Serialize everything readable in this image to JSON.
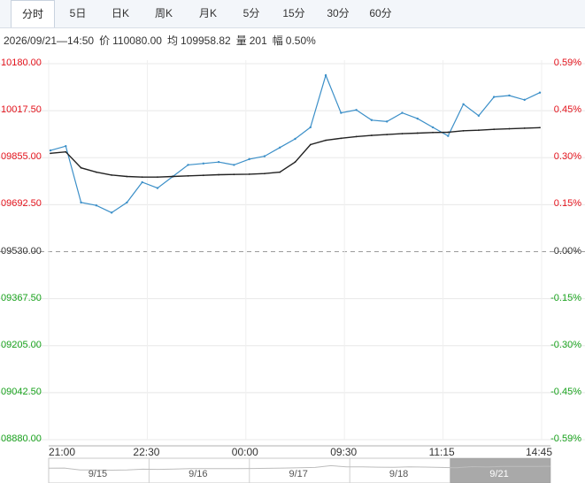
{
  "tabs": [
    {
      "label": "分时",
      "active": true
    },
    {
      "label": "5日"
    },
    {
      "label": "日K"
    },
    {
      "label": "周K"
    },
    {
      "label": "月K"
    },
    {
      "label": "5分"
    },
    {
      "label": "15分"
    },
    {
      "label": "30分"
    },
    {
      "label": "60分"
    }
  ],
  "info": {
    "datetime": "2026/09/21—14:50",
    "price_label": "价",
    "price": "110080.00",
    "avg_label": "均",
    "avg": "109958.82",
    "vol_label": "量",
    "vol": "201",
    "change_label": "幅",
    "change": "0.50%"
  },
  "y_left": [
    "10180.00",
    "10017.50",
    "09855.00",
    "09692.50",
    "09530.00",
    "09367.50",
    "09205.00",
    "09042.50",
    "08880.00"
  ],
  "y_right": [
    "0.59%",
    "0.45%",
    "0.30%",
    "0.15%",
    "0.00%",
    "-0.15%",
    "-0.30%",
    "-0.45%",
    "-0.59%"
  ],
  "x_labels": [
    "21:00",
    "22:30",
    "00:00",
    "09:30",
    "11:15",
    "14:45"
  ],
  "navigator_labels": [
    "9/15",
    "9/16",
    "9/17",
    "9/18",
    "9/21"
  ],
  "colors": {
    "price_line": "#3b8fc8",
    "avg_line": "#222222",
    "up": "#e4131c",
    "down": "#19a21d"
  },
  "chart_data": {
    "type": "line",
    "ylim": [
      8880.0,
      10180.0
    ],
    "base": 9530.0,
    "x": [
      "21:00",
      "21:15",
      "21:30",
      "21:45",
      "22:00",
      "22:15",
      "22:30",
      "22:45",
      "23:00",
      "23:15",
      "23:30",
      "23:45",
      "00:00",
      "00:15",
      "00:30",
      "00:45",
      "09:00",
      "09:15",
      "09:30",
      "09:45",
      "10:00",
      "10:15",
      "10:30",
      "10:45",
      "11:00",
      "11:15",
      "11:30",
      "13:30",
      "13:45",
      "14:00",
      "14:15",
      "14:30",
      "14:45"
    ],
    "series": [
      {
        "name": "价",
        "values": [
          9880,
          9895,
          9700,
          9690,
          9665,
          9700,
          9770,
          9750,
          9790,
          9830,
          9835,
          9840,
          9830,
          9850,
          9860,
          9890,
          9920,
          9960,
          10140,
          10010,
          10020,
          9985,
          9980,
          10010,
          9990,
          9960,
          9930,
          10040,
          10000,
          10065,
          10070,
          10055,
          10080
        ]
      },
      {
        "name": "均",
        "values": [
          9870,
          9875,
          9820,
          9805,
          9795,
          9790,
          9788,
          9788,
          9790,
          9792,
          9794,
          9796,
          9797,
          9798,
          9800,
          9805,
          9840,
          9900,
          9915,
          9922,
          9928,
          9932,
          9935,
          9938,
          9940,
          9942,
          9943,
          9948,
          9950,
          9953,
          9955,
          9957,
          9959
        ]
      }
    ]
  }
}
